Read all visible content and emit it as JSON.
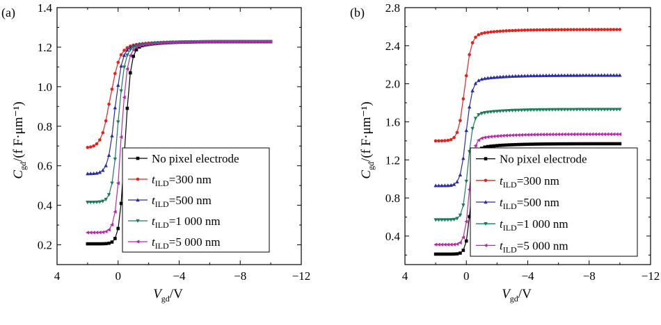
{
  "chart_data": [
    {
      "panel": "(a)",
      "type": "line",
      "xlabel": {
        "var": "V",
        "sub": "gd",
        "unit": "/V"
      },
      "ylabel": {
        "var": "C",
        "sub": "gd",
        "unit": "/(f F·μm⁻¹)"
      },
      "xlim": [
        4,
        -12
      ],
      "ylim": [
        0.1,
        1.4
      ],
      "xticks": [
        4,
        0,
        -4,
        -8,
        -12
      ],
      "xtick_labels": [
        "4",
        "0",
        "−4",
        "−8",
        "−12"
      ],
      "yticks": [
        0.2,
        0.4,
        0.6,
        0.8,
        1.0,
        1.2,
        1.4
      ],
      "ytick_labels": [
        "0.2",
        "0.4",
        "0.6",
        "0.8",
        "1.0",
        "1.2",
        "1.4"
      ],
      "legend_position": "bottom-right",
      "series": [
        {
          "name": "No pixel electrode",
          "color": "#000000",
          "marker": "square",
          "low": 0.205,
          "high": 1.228,
          "vt": -0.45,
          "k": 0.18,
          "tau": 0.85
        },
        {
          "name": "t_ILD=300 nm",
          "color": "#e8201c",
          "marker": "circle",
          "low": 0.69,
          "high": 1.228,
          "vt": 0.5,
          "k": 0.28,
          "tau": 0.85
        },
        {
          "name": "t_ILD=500 nm",
          "color": "#2b2ba0",
          "marker": "triangle-up",
          "low": 0.56,
          "high": 1.228,
          "vt": 0.2,
          "k": 0.22,
          "tau": 0.85
        },
        {
          "name": "t_ILD=1 000 nm",
          "color": "#1c7a5c",
          "marker": "triangle-down",
          "low": 0.415,
          "high": 1.228,
          "vt": 0.0,
          "k": 0.2,
          "tau": 0.85
        },
        {
          "name": "t_ILD=5 000 nm",
          "color": "#b62aa8",
          "marker": "triangle-left",
          "low": 0.262,
          "high": 1.228,
          "vt": -0.2,
          "k": 0.19,
          "tau": 0.85
        }
      ]
    },
    {
      "panel": "(b)",
      "type": "line",
      "xlabel": {
        "var": "V",
        "sub": "gd",
        "unit": "/V"
      },
      "ylabel": {
        "var": "C",
        "sub": "gd",
        "unit": "/(f F·μm⁻¹)"
      },
      "xlim": [
        4,
        -12
      ],
      "ylim": [
        0.1,
        2.8
      ],
      "xticks": [
        4,
        0,
        -4,
        -8,
        -12
      ],
      "xtick_labels": [
        "4",
        "0",
        "−4",
        "−8",
        "−12"
      ],
      "yticks": [
        0.4,
        0.8,
        1.2,
        1.6,
        2.0,
        2.4,
        2.8
      ],
      "ytick_labels": [
        "0.4",
        "0.8",
        "1.2",
        "1.6",
        "2.0",
        "2.4",
        "2.8"
      ],
      "legend_position": "bottom-right",
      "series": [
        {
          "name": "No pixel electrode",
          "color": "#000000",
          "marker": "square",
          "low": 0.21,
          "high": 1.37,
          "vt": -0.3,
          "k": 0.15,
          "tau": 1.0
        },
        {
          "name": "t_ILD=300 nm",
          "color": "#e8201c",
          "marker": "circle",
          "low": 1.4,
          "high": 2.57,
          "vt": 0.1,
          "k": 0.2,
          "tau": 1.0
        },
        {
          "name": "t_ILD=500 nm",
          "color": "#2b2ba0",
          "marker": "triangle-up",
          "low": 0.93,
          "high": 2.09,
          "vt": 0.0,
          "k": 0.18,
          "tau": 1.0
        },
        {
          "name": "t_ILD=1 000 nm",
          "color": "#1c7a5c",
          "marker": "triangle-down",
          "low": 0.57,
          "high": 1.73,
          "vt": -0.1,
          "k": 0.16,
          "tau": 1.0
        },
        {
          "name": "t_ILD=5 000 nm",
          "color": "#b62aa8",
          "marker": "triangle-left",
          "low": 0.31,
          "high": 1.47,
          "vt": -0.2,
          "k": 0.15,
          "tau": 1.0
        }
      ]
    }
  ],
  "x_range_data": {
    "start": 2,
    "end": -10,
    "step": 0.2
  }
}
